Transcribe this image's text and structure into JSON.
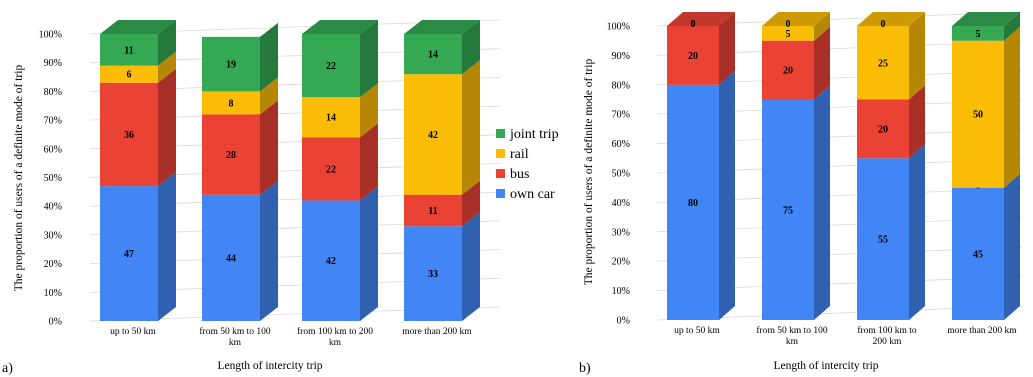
{
  "colors": {
    "own_car": "#4285f4",
    "bus": "#ea4335",
    "rail": "#fbbc05",
    "joint_trip": "#34a853",
    "grid": "#d9d9d9",
    "text": "#000000"
  },
  "chart_data": [
    {
      "panel_label": "a)",
      "type": "bar",
      "stacked": true,
      "style": "3d-column",
      "ylabel": "The proportion of users of a definite mode of trip",
      "xlabel": "Length of intercity trip",
      "ylim": [
        0,
        100
      ],
      "yticks": [
        "0%",
        "10%",
        "20%",
        "30%",
        "40%",
        "50%",
        "60%",
        "70%",
        "80%",
        "90%",
        "100%"
      ],
      "categories": [
        [
          "up to 50 km"
        ],
        [
          "from 50 km to 100",
          "km"
        ],
        [
          "from 100 km to 200",
          "km"
        ],
        [
          "more than 200 km"
        ]
      ],
      "series": [
        {
          "name": "own car",
          "color_key": "own_car",
          "values": [
            47,
            44,
            42,
            33
          ]
        },
        {
          "name": "bus",
          "color_key": "bus",
          "values": [
            36,
            28,
            22,
            11
          ]
        },
        {
          "name": "rail",
          "color_key": "rail",
          "values": [
            6,
            8,
            14,
            42
          ]
        },
        {
          "name": "joint trip",
          "color_key": "joint_trip",
          "values": [
            11,
            19,
            22,
            14
          ]
        }
      ],
      "legend": {
        "position": "right",
        "order": [
          "joint trip",
          "rail",
          "bus",
          "own car"
        ]
      }
    },
    {
      "panel_label": "b)",
      "type": "bar",
      "stacked": true,
      "style": "3d-column",
      "ylabel": "The proportion of users of a definite mode of trip",
      "xlabel": "Length of intercity trip",
      "ylim": [
        0,
        100
      ],
      "yticks": [
        "0%",
        "10%",
        "20%",
        "30%",
        "40%",
        "50%",
        "60%",
        "70%",
        "80%",
        "90%",
        "100%"
      ],
      "categories": [
        [
          "up to 50 km"
        ],
        [
          "from 50 km to 100",
          "km"
        ],
        [
          "from 100 km to",
          "200 km"
        ],
        [
          "more than 200 km"
        ]
      ],
      "series": [
        {
          "name": "own car",
          "color_key": "own_car",
          "values": [
            80,
            75,
            55,
            45
          ]
        },
        {
          "name": "bus",
          "color_key": "bus",
          "values": [
            20,
            20,
            20,
            0
          ]
        },
        {
          "name": "rail",
          "color_key": "rail",
          "values": [
            0,
            5,
            25,
            50
          ]
        },
        {
          "name": "joint trip",
          "color_key": "joint_trip",
          "values": [
            0,
            0,
            0,
            5
          ]
        }
      ],
      "legend": null
    }
  ]
}
